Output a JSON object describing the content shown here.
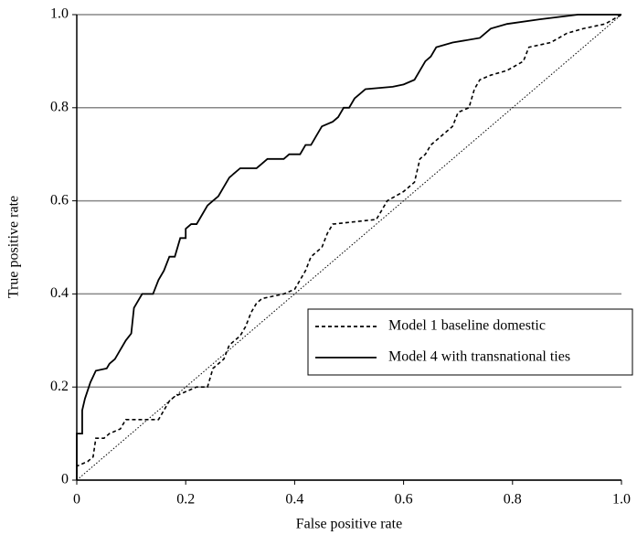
{
  "chart_data": {
    "type": "line",
    "xlabel": "False positive rate",
    "ylabel": "True positive rate",
    "xlim": [
      0,
      1
    ],
    "ylim": [
      0,
      1
    ],
    "xticks": [
      0,
      0.2,
      0.4,
      0.6,
      0.8,
      {
        "value": 1,
        "label": "1.0"
      }
    ],
    "yticks": [
      0,
      0.2,
      0.4,
      0.6,
      0.8,
      {
        "value": 1,
        "label": "1.0"
      }
    ],
    "grid": true,
    "legend": "lower-right",
    "diagonal": true,
    "series": [
      {
        "name": "Model 1 baseline domestic",
        "color": "#000000",
        "style": "dashed",
        "x": [
          0,
          0,
          0.02,
          0.03,
          0.035,
          0.05,
          0.06,
          0.08,
          0.09,
          0.15,
          0.16,
          0.17,
          0.18,
          0.2,
          0.22,
          0.24,
          0.25,
          0.27,
          0.28,
          0.3,
          0.31,
          0.32,
          0.33,
          0.34,
          0.38,
          0.4,
          0.41,
          0.42,
          0.43,
          0.45,
          0.46,
          0.47,
          0.55,
          0.57,
          0.6,
          0.62,
          0.63,
          0.64,
          0.65,
          0.67,
          0.69,
          0.7,
          0.72,
          0.73,
          0.74,
          0.76,
          0.79,
          0.82,
          0.83,
          0.87,
          0.9,
          0.93,
          0.97,
          1
        ],
        "values": [
          0,
          0.03,
          0.04,
          0.05,
          0.09,
          0.09,
          0.1,
          0.11,
          0.13,
          0.13,
          0.15,
          0.17,
          0.18,
          0.19,
          0.2,
          0.2,
          0.24,
          0.26,
          0.29,
          0.31,
          0.33,
          0.36,
          0.38,
          0.39,
          0.4,
          0.41,
          0.43,
          0.45,
          0.48,
          0.5,
          0.53,
          0.55,
          0.56,
          0.6,
          0.62,
          0.64,
          0.69,
          0.7,
          0.72,
          0.74,
          0.76,
          0.79,
          0.8,
          0.84,
          0.86,
          0.87,
          0.88,
          0.9,
          0.93,
          0.94,
          0.96,
          0.97,
          0.98,
          1
        ]
      },
      {
        "name": "Model 4 with transnational ties",
        "color": "#000000",
        "style": "solid",
        "x": [
          0,
          0,
          0.01,
          0.01,
          0.015,
          0.025,
          0.035,
          0.055,
          0.06,
          0.07,
          0.08,
          0.09,
          0.1,
          0.105,
          0.12,
          0.14,
          0.15,
          0.16,
          0.17,
          0.18,
          0.19,
          0.2,
          0.2,
          0.21,
          0.22,
          0.23,
          0.24,
          0.25,
          0.26,
          0.27,
          0.28,
          0.3,
          0.33,
          0.34,
          0.35,
          0.38,
          0.39,
          0.41,
          0.42,
          0.43,
          0.44,
          0.45,
          0.47,
          0.48,
          0.49,
          0.5,
          0.51,
          0.52,
          0.53,
          0.58,
          0.6,
          0.62,
          0.63,
          0.64,
          0.65,
          0.66,
          0.69,
          0.74,
          0.76,
          0.79,
          0.85,
          0.92,
          1
        ],
        "values": [
          0,
          0.1,
          0.1,
          0.15,
          0.175,
          0.21,
          0.235,
          0.24,
          0.25,
          0.26,
          0.28,
          0.3,
          0.315,
          0.37,
          0.4,
          0.4,
          0.43,
          0.45,
          0.48,
          0.48,
          0.52,
          0.52,
          0.54,
          0.55,
          0.55,
          0.57,
          0.59,
          0.6,
          0.61,
          0.63,
          0.65,
          0.67,
          0.67,
          0.68,
          0.69,
          0.69,
          0.7,
          0.7,
          0.72,
          0.72,
          0.74,
          0.76,
          0.77,
          0.78,
          0.8,
          0.8,
          0.82,
          0.83,
          0.84,
          0.845,
          0.85,
          0.86,
          0.88,
          0.9,
          0.91,
          0.93,
          0.94,
          0.95,
          0.97,
          0.98,
          0.99,
          1,
          1
        ]
      }
    ]
  }
}
